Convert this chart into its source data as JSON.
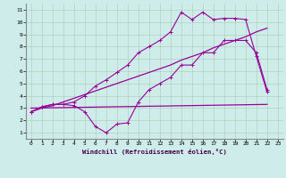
{
  "xlabel": "Windchill (Refroidissement éolien,°C)",
  "background_color": "#ceecea",
  "line_color": "#990099",
  "grid_color": "#aaccaa",
  "xlim": [
    -0.5,
    23.5
  ],
  "ylim": [
    0.5,
    11.5
  ],
  "xticks": [
    0,
    1,
    2,
    3,
    4,
    5,
    6,
    7,
    8,
    9,
    10,
    11,
    12,
    13,
    14,
    15,
    16,
    17,
    18,
    19,
    20,
    21,
    22,
    23
  ],
  "yticks": [
    1,
    2,
    3,
    4,
    5,
    6,
    7,
    8,
    9,
    10,
    11
  ],
  "curve1_x": [
    0,
    1,
    2,
    3,
    4,
    5,
    6,
    7,
    8,
    9,
    10,
    11,
    12,
    13,
    14,
    15,
    16,
    17,
    18,
    19,
    20,
    21,
    22
  ],
  "curve1_y": [
    2.7,
    3.1,
    3.3,
    3.3,
    3.2,
    2.7,
    1.5,
    1.0,
    1.7,
    1.8,
    3.5,
    4.5,
    5.0,
    5.5,
    6.5,
    6.5,
    7.5,
    7.5,
    8.5,
    8.5,
    8.5,
    7.5,
    4.5
  ],
  "curve2_x": [
    0,
    1,
    2,
    3,
    4,
    5,
    6,
    7,
    8,
    9,
    10,
    11,
    12,
    13,
    14,
    15,
    16,
    17,
    18,
    19,
    20,
    21,
    22
  ],
  "curve2_y": [
    2.7,
    3.1,
    3.3,
    3.3,
    3.5,
    4.0,
    4.8,
    5.3,
    5.9,
    6.5,
    7.5,
    8.0,
    8.5,
    9.2,
    10.8,
    10.2,
    10.8,
    10.2,
    10.3,
    10.3,
    10.2,
    7.2,
    4.3
  ],
  "curve3_x": [
    0,
    22
  ],
  "curve3_y": [
    3.0,
    3.3
  ],
  "curve4_x": [
    0,
    1,
    2,
    3,
    4,
    5,
    6,
    7,
    8,
    9,
    10,
    11,
    12,
    13,
    14,
    15,
    16,
    17,
    18,
    19,
    20,
    21,
    22
  ],
  "curve4_y": [
    2.7,
    3.0,
    3.2,
    3.5,
    3.8,
    4.1,
    4.4,
    4.7,
    5.0,
    5.3,
    5.6,
    5.9,
    6.2,
    6.5,
    6.9,
    7.2,
    7.5,
    7.9,
    8.2,
    8.5,
    8.8,
    9.2,
    9.5
  ]
}
